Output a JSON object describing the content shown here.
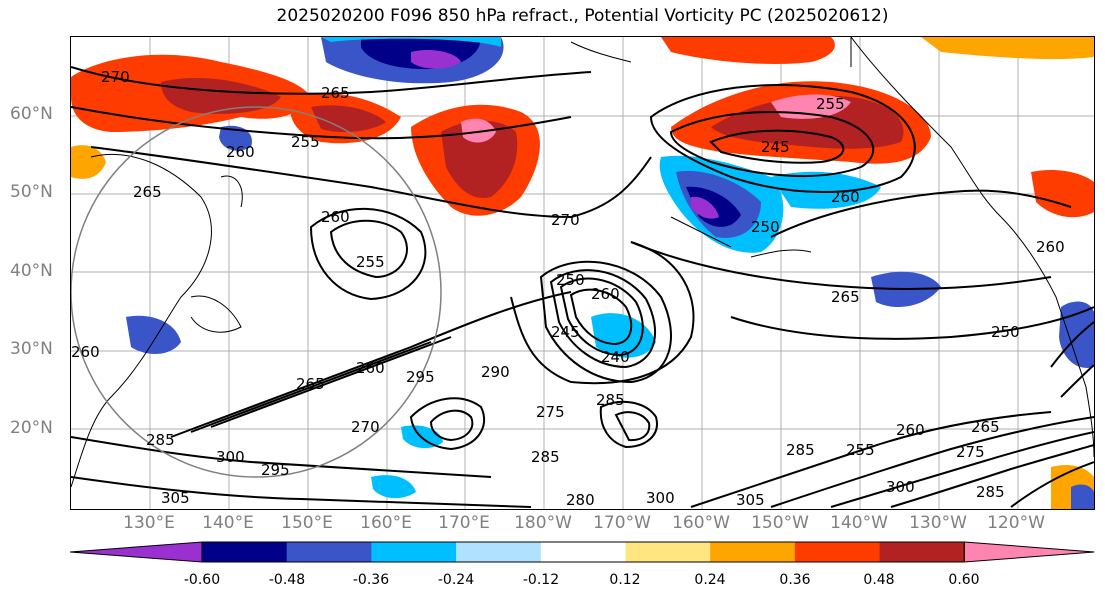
{
  "title": "2025020200 F096 850 hPa refract., Potential Vorticity PC (2025020612)",
  "lat_labels": [
    "60°N",
    "50°N",
    "40°N",
    "30°N",
    "20°N"
  ],
  "lon_labels": [
    "130°E",
    "140°E",
    "150°E",
    "160°E",
    "170°E",
    "180°W",
    "170°W",
    "160°W",
    "150°W",
    "140°W",
    "130°W",
    "120°W"
  ],
  "contour_labels": [
    "270",
    "265",
    "255",
    "260",
    "265",
    "270",
    "250",
    "260",
    "255",
    "245",
    "250",
    "260",
    "265",
    "260",
    "255",
    "250",
    "260",
    "240",
    "245",
    "275",
    "285",
    "290",
    "295",
    "260",
    "265",
    "285",
    "300",
    "295",
    "285",
    "305",
    "280",
    "300",
    "305",
    "285",
    "300",
    "275",
    "285",
    "255",
    "260",
    "265",
    "270",
    "260"
  ],
  "colorbar": {
    "ticks": [
      "-0.60",
      "-0.48",
      "-0.36",
      "-0.24",
      "-0.12",
      "0.12",
      "0.24",
      "0.36",
      "0.48",
      "0.60"
    ],
    "colors": [
      "#9b30d0",
      "#000088",
      "#3a55c8",
      "#00bfff",
      "#b0e2ff",
      "#ffffff",
      "#ffe680",
      "#ffa500",
      "#ff3c00",
      "#b22222",
      "#ff85b0"
    ]
  }
}
